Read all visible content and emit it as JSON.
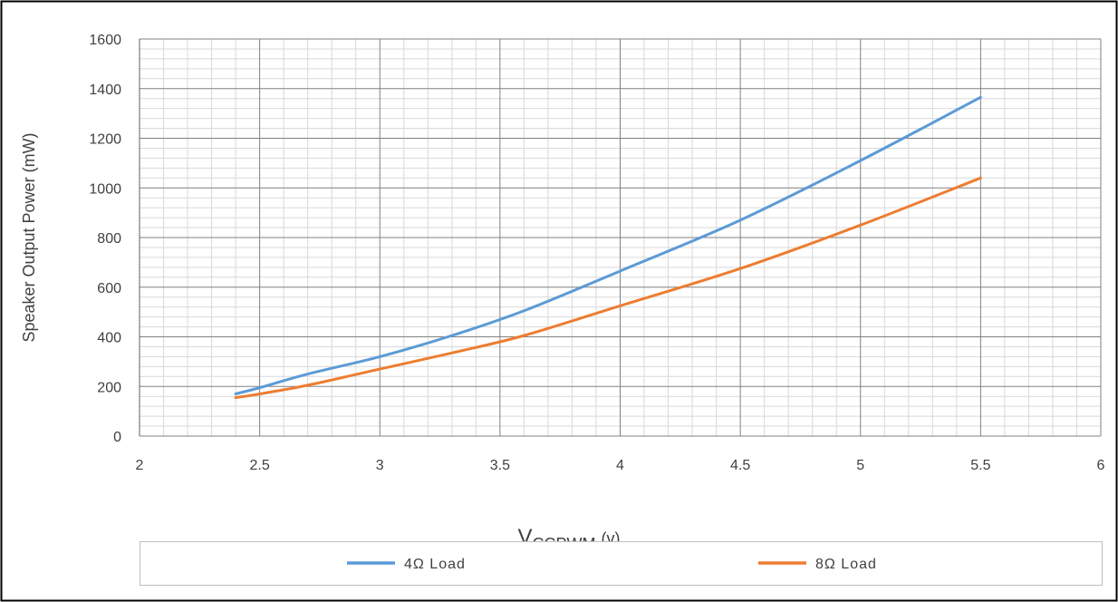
{
  "chart_data": {
    "type": "line",
    "xlabel": {
      "main": "V",
      "sub": "CCPWM",
      "unit": "(v)"
    },
    "ylabel": "Speaker Output Power (mW)",
    "xlim": [
      2,
      6
    ],
    "ylim": [
      0,
      1600
    ],
    "xticks": [
      "2",
      "2.5",
      "3",
      "3.5",
      "4",
      "4.5",
      "5",
      "5.5",
      "6"
    ],
    "yticks": [
      "0",
      "200",
      "400",
      "600",
      "800",
      "1000",
      "1200",
      "1400",
      "1600"
    ],
    "grid": "major and minor",
    "legend_position": "bottom",
    "series": [
      {
        "name": "4Ω Load",
        "color": "#5b9bd5",
        "x": [
          2.4,
          2.5,
          2.7,
          3.0,
          3.3,
          3.6,
          4.0,
          4.5,
          5.0,
          5.5
        ],
        "y": [
          170,
          195,
          250,
          320,
          405,
          505,
          665,
          870,
          1110,
          1365
        ]
      },
      {
        "name": "8Ω Load",
        "color": "#ed7d31",
        "x": [
          2.4,
          2.5,
          2.7,
          3.0,
          3.3,
          3.6,
          4.0,
          4.5,
          5.0,
          5.5
        ],
        "y": [
          155,
          170,
          205,
          270,
          335,
          405,
          525,
          675,
          850,
          1040
        ]
      }
    ]
  }
}
